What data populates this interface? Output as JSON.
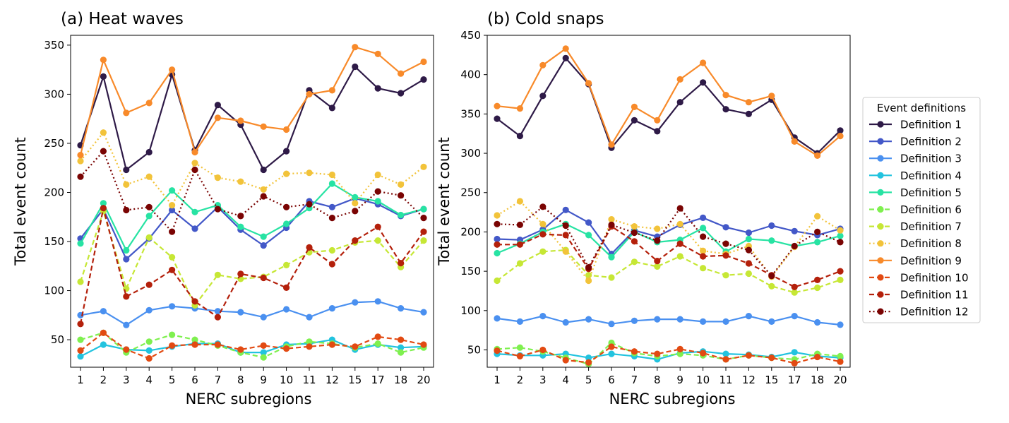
{
  "chart_data": [
    {
      "type": "line",
      "title": "(a) Heat waves",
      "xlabel": "NERC subregions",
      "ylabel": "Total event count",
      "categories": [
        "1",
        "2",
        "3",
        "4",
        "5",
        "6",
        "7",
        "8",
        "9",
        "10",
        "11",
        "12",
        "15",
        "17",
        "18",
        "20"
      ],
      "ylim": [
        22,
        360
      ],
      "yticks": [
        50,
        100,
        150,
        200,
        250,
        300,
        350
      ],
      "grid": false,
      "series": [
        {
          "name": "Definition 1",
          "color": "#2e1a47",
          "dash": "solid",
          "values": [
            248,
            318,
            223,
            241,
            320,
            243,
            289,
            269,
            223,
            242,
            304,
            286,
            328,
            306,
            301,
            315
          ]
        },
        {
          "name": "Definition 2",
          "color": "#4358c8",
          "dash": "solid",
          "values": [
            153,
            183,
            132,
            153,
            182,
            163,
            185,
            162,
            146,
            164,
            191,
            185,
            194,
            188,
            176,
            183
          ]
        },
        {
          "name": "Definition 3",
          "color": "#4a90f0",
          "dash": "solid",
          "values": [
            75,
            79,
            65,
            80,
            84,
            82,
            79,
            78,
            73,
            81,
            73,
            82,
            88,
            89,
            82,
            78
          ]
        },
        {
          "name": "Definition 4",
          "color": "#22c3df",
          "dash": "solid",
          "values": [
            33,
            45,
            40,
            39,
            43,
            46,
            46,
            37,
            37,
            45,
            46,
            50,
            40,
            45,
            42,
            43
          ]
        },
        {
          "name": "Definition 5",
          "color": "#27e3a3",
          "dash": "solid",
          "values": [
            148,
            189,
            141,
            176,
            202,
            180,
            187,
            165,
            155,
            168,
            184,
            209,
            195,
            191,
            177,
            183
          ]
        },
        {
          "name": "Definition 6",
          "color": "#7ff04f",
          "dash": "dashed",
          "values": [
            50,
            57,
            37,
            48,
            55,
            50,
            44,
            37,
            32,
            43,
            48,
            46,
            42,
            46,
            37,
            42
          ]
        },
        {
          "name": "Definition 7",
          "color": "#c6e735",
          "dash": "dashed",
          "values": [
            109,
            181,
            102,
            154,
            134,
            85,
            116,
            112,
            114,
            126,
            139,
            141,
            149,
            151,
            124,
            151
          ]
        },
        {
          "name": "Definition 8",
          "color": "#f2c33a",
          "dash": "dotted",
          "values": [
            232,
            261,
            208,
            216,
            187,
            230,
            215,
            211,
            203,
            219,
            220,
            218,
            189,
            218,
            208,
            226
          ]
        },
        {
          "name": "Definition 9",
          "color": "#f88a2a",
          "dash": "solid",
          "values": [
            238,
            335,
            281,
            291,
            325,
            241,
            276,
            273,
            267,
            264,
            300,
            304,
            348,
            341,
            321,
            333
          ]
        },
        {
          "name": "Definition 10",
          "color": "#e24a12",
          "dash": "dashed",
          "values": [
            39,
            57,
            40,
            31,
            44,
            45,
            45,
            40,
            44,
            41,
            43,
            45,
            43,
            53,
            50,
            45
          ]
        },
        {
          "name": "Definition 11",
          "color": "#b4200b",
          "dash": "dashed",
          "values": [
            66,
            184,
            94,
            106,
            121,
            89,
            73,
            117,
            113,
            103,
            144,
            127,
            151,
            165,
            128,
            160
          ]
        },
        {
          "name": "Definition 12",
          "color": "#7a0403",
          "dash": "dotted",
          "values": [
            216,
            242,
            182,
            185,
            160,
            223,
            183,
            176,
            196,
            185,
            188,
            174,
            181,
            201,
            197,
            174
          ]
        }
      ]
    },
    {
      "type": "line",
      "title": "(b) Cold snaps",
      "xlabel": "NERC subregions",
      "ylabel": "Total event count",
      "categories": [
        "1",
        "2",
        "3",
        "4",
        "5",
        "6",
        "7",
        "8",
        "9",
        "10",
        "11",
        "12",
        "15",
        "17",
        "18",
        "20"
      ],
      "ylim": [
        28,
        450
      ],
      "yticks": [
        50,
        100,
        150,
        200,
        250,
        300,
        350,
        400,
        450
      ],
      "grid": false,
      "series": [
        {
          "name": "Definition 1",
          "color": "#2e1a47",
          "dash": "solid",
          "values": [
            344,
            322,
            373,
            421,
            388,
            307,
            342,
            328,
            365,
            390,
            356,
            350,
            368,
            320,
            300,
            329
          ]
        },
        {
          "name": "Definition 2",
          "color": "#4358c8",
          "dash": "solid",
          "values": [
            191,
            190,
            203,
            228,
            212,
            172,
            202,
            194,
            209,
            218,
            206,
            199,
            208,
            201,
            196,
            204
          ]
        },
        {
          "name": "Definition 3",
          "color": "#4a90f0",
          "dash": "solid",
          "values": [
            90,
            86,
            93,
            85,
            89,
            83,
            87,
            89,
            89,
            86,
            86,
            93,
            86,
            93,
            85,
            82
          ]
        },
        {
          "name": "Definition 4",
          "color": "#22c3df",
          "dash": "solid",
          "values": [
            45,
            43,
            43,
            45,
            40,
            45,
            42,
            38,
            46,
            48,
            45,
            44,
            41,
            47,
            42,
            40
          ]
        },
        {
          "name": "Definition 5",
          "color": "#27e3a3",
          "dash": "solid",
          "values": [
            173,
            185,
            200,
            210,
            196,
            168,
            200,
            187,
            190,
            205,
            175,
            191,
            189,
            182,
            187,
            195
          ]
        },
        {
          "name": "Definition 6",
          "color": "#7ff04f",
          "dash": "dashed",
          "values": [
            51,
            53,
            48,
            40,
            32,
            59,
            46,
            42,
            45,
            43,
            38,
            43,
            40,
            38,
            45,
            42
          ]
        },
        {
          "name": "Definition 7",
          "color": "#c6e735",
          "dash": "dashed",
          "values": [
            138,
            160,
            175,
            177,
            145,
            142,
            162,
            156,
            169,
            154,
            145,
            147,
            131,
            123,
            129,
            139
          ]
        },
        {
          "name": "Definition 8",
          "color": "#f2c33a",
          "dash": "dotted",
          "values": [
            221,
            239,
            210,
            175,
            138,
            216,
            207,
            204,
            210,
            176,
            172,
            182,
            143,
            181,
            220,
            202
          ]
        },
        {
          "name": "Definition 9",
          "color": "#f88a2a",
          "dash": "solid",
          "values": [
            360,
            357,
            412,
            433,
            389,
            311,
            359,
            342,
            394,
            415,
            374,
            365,
            373,
            315,
            297,
            322
          ]
        },
        {
          "name": "Definition 10",
          "color": "#e24a12",
          "dash": "dashed",
          "values": [
            49,
            42,
            50,
            37,
            34,
            54,
            48,
            45,
            51,
            46,
            38,
            43,
            40,
            33,
            41,
            35
          ]
        },
        {
          "name": "Definition 11",
          "color": "#b4200b",
          "dash": "dashed",
          "values": [
            184,
            184,
            197,
            196,
            153,
            207,
            188,
            163,
            185,
            169,
            170,
            160,
            145,
            130,
            139,
            150
          ]
        },
        {
          "name": "Definition 12",
          "color": "#7a0403",
          "dash": "dotted",
          "values": [
            210,
            209,
            232,
            208,
            155,
            209,
            199,
            189,
            230,
            194,
            185,
            177,
            144,
            182,
            200,
            187
          ]
        }
      ]
    }
  ],
  "legend": {
    "title": "Event definitions",
    "placement": "right"
  }
}
